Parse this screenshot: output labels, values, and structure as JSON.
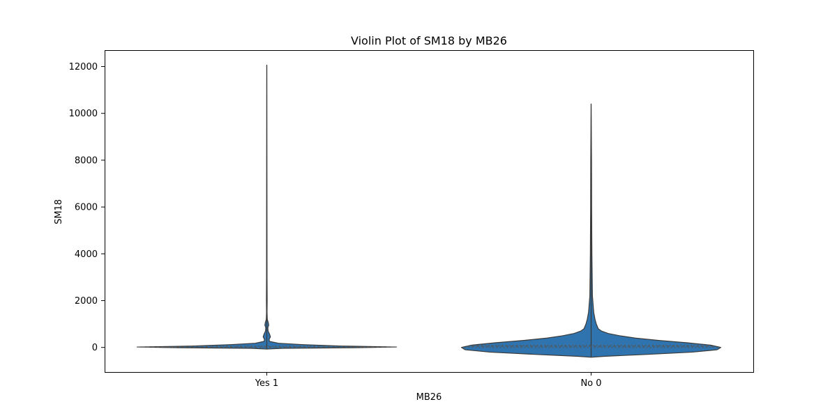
{
  "chart_data": {
    "type": "violin",
    "title": "Violin Plot of SM18 by MB26",
    "xlabel": "MB26",
    "ylabel": "SM18",
    "categories": [
      "Yes 1",
      "No 0"
    ],
    "ylim": [
      -1050,
      12700
    ],
    "yticks": [
      0,
      2000,
      4000,
      6000,
      8000,
      10000,
      12000
    ],
    "yticklabels": [
      "0",
      "2000",
      "4000",
      "6000",
      "8000",
      "10000",
      "12000"
    ],
    "grid": false,
    "legend": "none",
    "colors": {
      "violin_fill": "#2f74ae",
      "violin_edge": "#3a3a3a",
      "inner_line": "#555555",
      "axis": "#000000"
    },
    "violins": [
      {
        "category": "Yes 1",
        "min": -70,
        "max": 12060,
        "quartiles": [
          0,
          20,
          60
        ],
        "profile": [
          {
            "y": -70,
            "w": 0.0
          },
          {
            "y": -40,
            "w": 0.12
          },
          {
            "y": -10,
            "w": 0.72
          },
          {
            "y": 20,
            "w": 1.0
          },
          {
            "y": 60,
            "w": 0.58
          },
          {
            "y": 120,
            "w": 0.28
          },
          {
            "y": 180,
            "w": 0.09
          },
          {
            "y": 260,
            "w": 0.02
          },
          {
            "y": 350,
            "w": 0.018
          },
          {
            "y": 450,
            "w": 0.028
          },
          {
            "y": 560,
            "w": 0.022
          },
          {
            "y": 700,
            "w": 0.01
          },
          {
            "y": 850,
            "w": 0.008
          },
          {
            "y": 950,
            "w": 0.015
          },
          {
            "y": 1050,
            "w": 0.012
          },
          {
            "y": 1200,
            "w": 0.004
          },
          {
            "y": 1500,
            "w": 0.002
          },
          {
            "y": 2000,
            "w": 0.003
          },
          {
            "y": 3000,
            "w": 0.002
          },
          {
            "y": 12060,
            "w": 0.0
          }
        ]
      },
      {
        "category": "No 0",
        "min": -420,
        "max": 10400,
        "quartiles": [
          0,
          50,
          90
        ],
        "profile": [
          {
            "y": -420,
            "w": 0.0
          },
          {
            "y": -380,
            "w": 0.1
          },
          {
            "y": -300,
            "w": 0.42
          },
          {
            "y": -200,
            "w": 0.78
          },
          {
            "y": -100,
            "w": 0.97
          },
          {
            "y": 0,
            "w": 1.0
          },
          {
            "y": 100,
            "w": 0.92
          },
          {
            "y": 200,
            "w": 0.74
          },
          {
            "y": 300,
            "w": 0.52
          },
          {
            "y": 400,
            "w": 0.34
          },
          {
            "y": 500,
            "w": 0.22
          },
          {
            "y": 600,
            "w": 0.13
          },
          {
            "y": 700,
            "w": 0.08
          },
          {
            "y": 800,
            "w": 0.055
          },
          {
            "y": 1000,
            "w": 0.04
          },
          {
            "y": 1200,
            "w": 0.03
          },
          {
            "y": 1500,
            "w": 0.02
          },
          {
            "y": 2200,
            "w": 0.01
          },
          {
            "y": 4000,
            "w": 0.006
          },
          {
            "y": 6000,
            "w": 0.004
          },
          {
            "y": 8000,
            "w": 0.003
          },
          {
            "y": 10400,
            "w": 0.0
          }
        ]
      }
    ]
  }
}
